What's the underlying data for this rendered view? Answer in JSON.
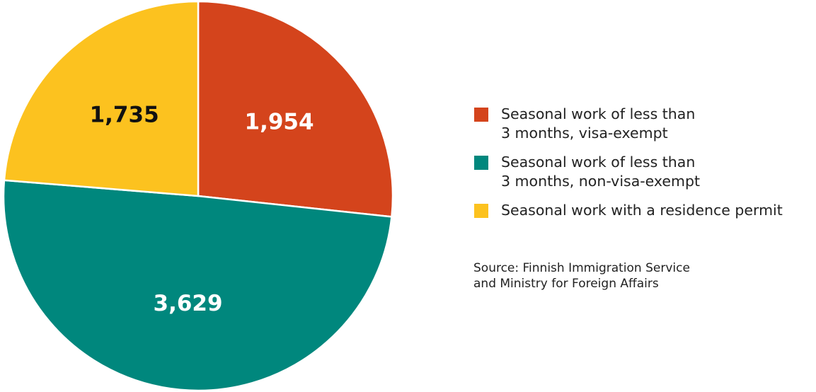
{
  "chart_data": {
    "type": "pie",
    "categories": [
      "Seasonal work of less than\n3 months, visa-exempt",
      "Seasonal work of less than\n3 months, non-visa-exempt",
      "Seasonal work with a residence permit"
    ],
    "values": [
      1954,
      3629,
      1735
    ],
    "value_labels": [
      "1,954",
      "3,629",
      "1,735"
    ],
    "colors": [
      "#d4441c",
      "#00877d",
      "#fcc21f"
    ],
    "legend": "right",
    "source": "Source: Finnish Immigration Service\nand Ministry for Foreign Affairs"
  }
}
